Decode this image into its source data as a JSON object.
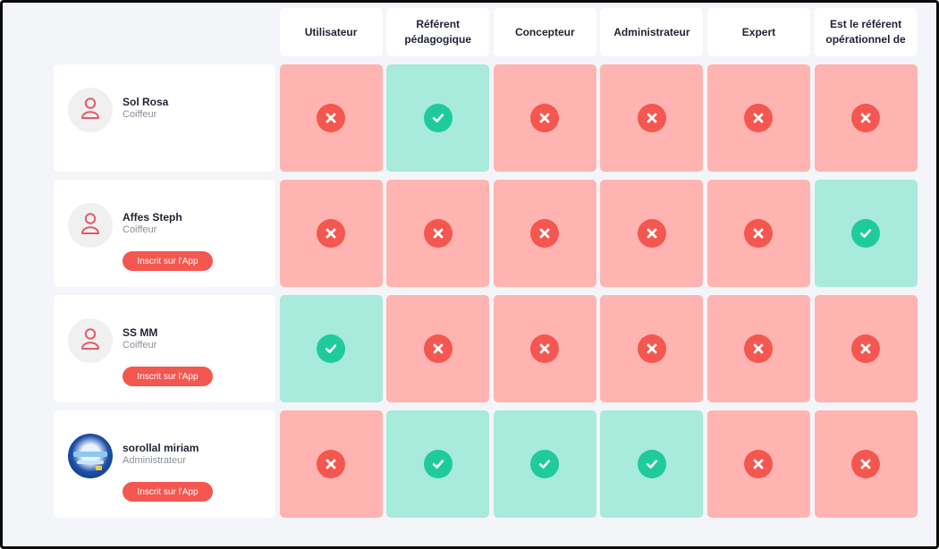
{
  "columns": [
    "Utilisateur",
    "Référent pédagogique",
    "Concepteur",
    "Administrateur",
    "Expert",
    "Est le référent opérationnel de"
  ],
  "users": [
    {
      "name": "Sol Rosa",
      "role": "Coiffeur",
      "avatar": "person-icon",
      "button": "",
      "permissions": [
        false,
        true,
        false,
        false,
        false,
        false
      ]
    },
    {
      "name": "Affes Steph",
      "role": "Coiffeur",
      "avatar": "person-icon",
      "button": "Inscrit sur l'App",
      "permissions": [
        false,
        false,
        false,
        false,
        false,
        true
      ]
    },
    {
      "name": "SS MM",
      "role": "Coiffeur",
      "avatar": "person-icon",
      "button": "Inscrit sur l'App",
      "permissions": [
        true,
        false,
        false,
        false,
        false,
        false
      ]
    },
    {
      "name": "sorollal miriam",
      "role": "Administrateur",
      "avatar": "photo",
      "button": "Inscrit sur l'App",
      "permissions": [
        false,
        true,
        true,
        true,
        false,
        false
      ]
    }
  ],
  "colors": {
    "denied_bg": "#ffb4b2",
    "denied_icon": "#f4574f",
    "granted_bg": "#a8eadc",
    "granted_icon": "#1fcb9c",
    "button": "#f4574f"
  },
  "icons": {
    "granted": "check-circle-icon",
    "denied": "x-circle-icon",
    "avatar": "person-icon"
  }
}
